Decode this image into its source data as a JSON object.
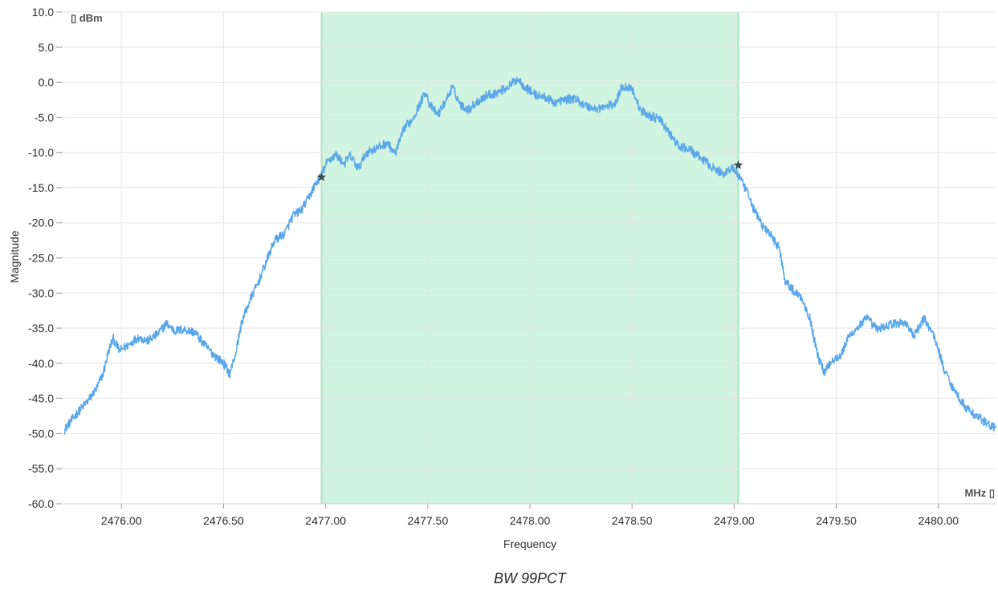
{
  "chart_data": {
    "type": "line",
    "title": "BW 99PCT",
    "xlabel": "Frequency",
    "ylabel": "Magnitude",
    "x_unit": "MHz ▯",
    "y_unit": "▯ dBm",
    "xlim": [
      2475.72,
      2480.28
    ],
    "ylim": [
      -60,
      10
    ],
    "x_ticks": [
      "2476.00",
      "2476.50",
      "2477.00",
      "2477.50",
      "2478.00",
      "2478.50",
      "2479.00",
      "2479.50",
      "2480.00"
    ],
    "y_ticks": [
      "10.0",
      "5.0",
      "0.0",
      "-5.0",
      "-10.0",
      "-15.0",
      "-20.0",
      "-25.0",
      "-30.0",
      "-35.0",
      "-40.0",
      "-45.0",
      "-50.0",
      "-55.0",
      "-60.0"
    ],
    "grid": true,
    "band": {
      "x_start": 2476.98,
      "x_end": 2479.02,
      "color": "#d1f4e1"
    },
    "markers": [
      {
        "x": 2476.98,
        "y": -13.5
      },
      {
        "x": 2479.02,
        "y": -11.8
      }
    ],
    "series": [
      {
        "color": "#5ba8ea",
        "points": [
          [
            2475.72,
            -49.5
          ],
          [
            2475.78,
            -47.2
          ],
          [
            2475.84,
            -45.2
          ],
          [
            2475.88,
            -43.5
          ],
          [
            2475.91,
            -41.5
          ],
          [
            2475.94,
            -38.0
          ],
          [
            2475.96,
            -36.5
          ],
          [
            2475.99,
            -38.2
          ],
          [
            2476.03,
            -37.5
          ],
          [
            2476.08,
            -36.3
          ],
          [
            2476.13,
            -36.8
          ],
          [
            2476.18,
            -35.8
          ],
          [
            2476.22,
            -34.3
          ],
          [
            2476.26,
            -35.4
          ],
          [
            2476.31,
            -35.2
          ],
          [
            2476.36,
            -35.6
          ],
          [
            2476.41,
            -37.5
          ],
          [
            2476.46,
            -39.0
          ],
          [
            2476.5,
            -40.0
          ],
          [
            2476.53,
            -41.5
          ],
          [
            2476.56,
            -38.5
          ],
          [
            2476.59,
            -34.0
          ],
          [
            2476.63,
            -31.0
          ],
          [
            2476.67,
            -28.5
          ],
          [
            2476.71,
            -25.5
          ],
          [
            2476.75,
            -22.5
          ],
          [
            2476.8,
            -21.5
          ],
          [
            2476.84,
            -19.0
          ],
          [
            2476.88,
            -18.2
          ],
          [
            2476.91,
            -16.8
          ],
          [
            2476.95,
            -14.5
          ],
          [
            2476.98,
            -13.2
          ],
          [
            2477.01,
            -11.2
          ],
          [
            2477.05,
            -10.3
          ],
          [
            2477.09,
            -11.6
          ],
          [
            2477.12,
            -10.4
          ],
          [
            2477.16,
            -12.3
          ],
          [
            2477.2,
            -10.0
          ],
          [
            2477.25,
            -9.4
          ],
          [
            2477.3,
            -8.6
          ],
          [
            2477.34,
            -10.2
          ],
          [
            2477.39,
            -6.2
          ],
          [
            2477.42,
            -5.5
          ],
          [
            2477.46,
            -3.2
          ],
          [
            2477.49,
            -1.2
          ],
          [
            2477.51,
            -3.3
          ],
          [
            2477.55,
            -4.6
          ],
          [
            2477.59,
            -2.5
          ],
          [
            2477.62,
            -0.7
          ],
          [
            2477.66,
            -3.2
          ],
          [
            2477.7,
            -3.9
          ],
          [
            2477.74,
            -2.8
          ],
          [
            2477.79,
            -1.8
          ],
          [
            2477.84,
            -1.5
          ],
          [
            2477.89,
            -0.7
          ],
          [
            2477.94,
            0.5
          ],
          [
            2477.98,
            -0.8
          ],
          [
            2478.03,
            -1.8
          ],
          [
            2478.08,
            -2.2
          ],
          [
            2478.12,
            -2.9
          ],
          [
            2478.17,
            -2.5
          ],
          [
            2478.22,
            -2.3
          ],
          [
            2478.27,
            -3.3
          ],
          [
            2478.32,
            -3.8
          ],
          [
            2478.37,
            -3.5
          ],
          [
            2478.42,
            -3.0
          ],
          [
            2478.45,
            -0.6
          ],
          [
            2478.5,
            -0.8
          ],
          [
            2478.54,
            -4.0
          ],
          [
            2478.59,
            -4.8
          ],
          [
            2478.64,
            -5.4
          ],
          [
            2478.69,
            -7.6
          ],
          [
            2478.73,
            -9.2
          ],
          [
            2478.78,
            -9.5
          ],
          [
            2478.82,
            -10.5
          ],
          [
            2478.86,
            -11.3
          ],
          [
            2478.91,
            -12.5
          ],
          [
            2478.95,
            -13.0
          ],
          [
            2478.99,
            -12.1
          ],
          [
            2479.02,
            -13.2
          ],
          [
            2479.06,
            -15.5
          ],
          [
            2479.1,
            -18.3
          ],
          [
            2479.14,
            -20.5
          ],
          [
            2479.18,
            -21.8
          ],
          [
            2479.22,
            -23.5
          ],
          [
            2479.25,
            -28.2
          ],
          [
            2479.29,
            -29.7
          ],
          [
            2479.33,
            -30.6
          ],
          [
            2479.37,
            -33.5
          ],
          [
            2479.41,
            -39.0
          ],
          [
            2479.44,
            -41.2
          ],
          [
            2479.48,
            -39.5
          ],
          [
            2479.52,
            -39.0
          ],
          [
            2479.56,
            -36.3
          ],
          [
            2479.61,
            -34.7
          ],
          [
            2479.65,
            -33.6
          ],
          [
            2479.7,
            -35.2
          ],
          [
            2479.75,
            -34.6
          ],
          [
            2479.8,
            -34.3
          ],
          [
            2479.84,
            -34.2
          ],
          [
            2479.88,
            -36.2
          ],
          [
            2479.93,
            -33.6
          ],
          [
            2479.98,
            -36.2
          ],
          [
            2480.03,
            -41.0
          ],
          [
            2480.08,
            -44.0
          ],
          [
            2480.14,
            -46.5
          ],
          [
            2480.2,
            -47.8
          ],
          [
            2480.25,
            -48.8
          ],
          [
            2480.28,
            -49.3
          ]
        ]
      }
    ]
  }
}
